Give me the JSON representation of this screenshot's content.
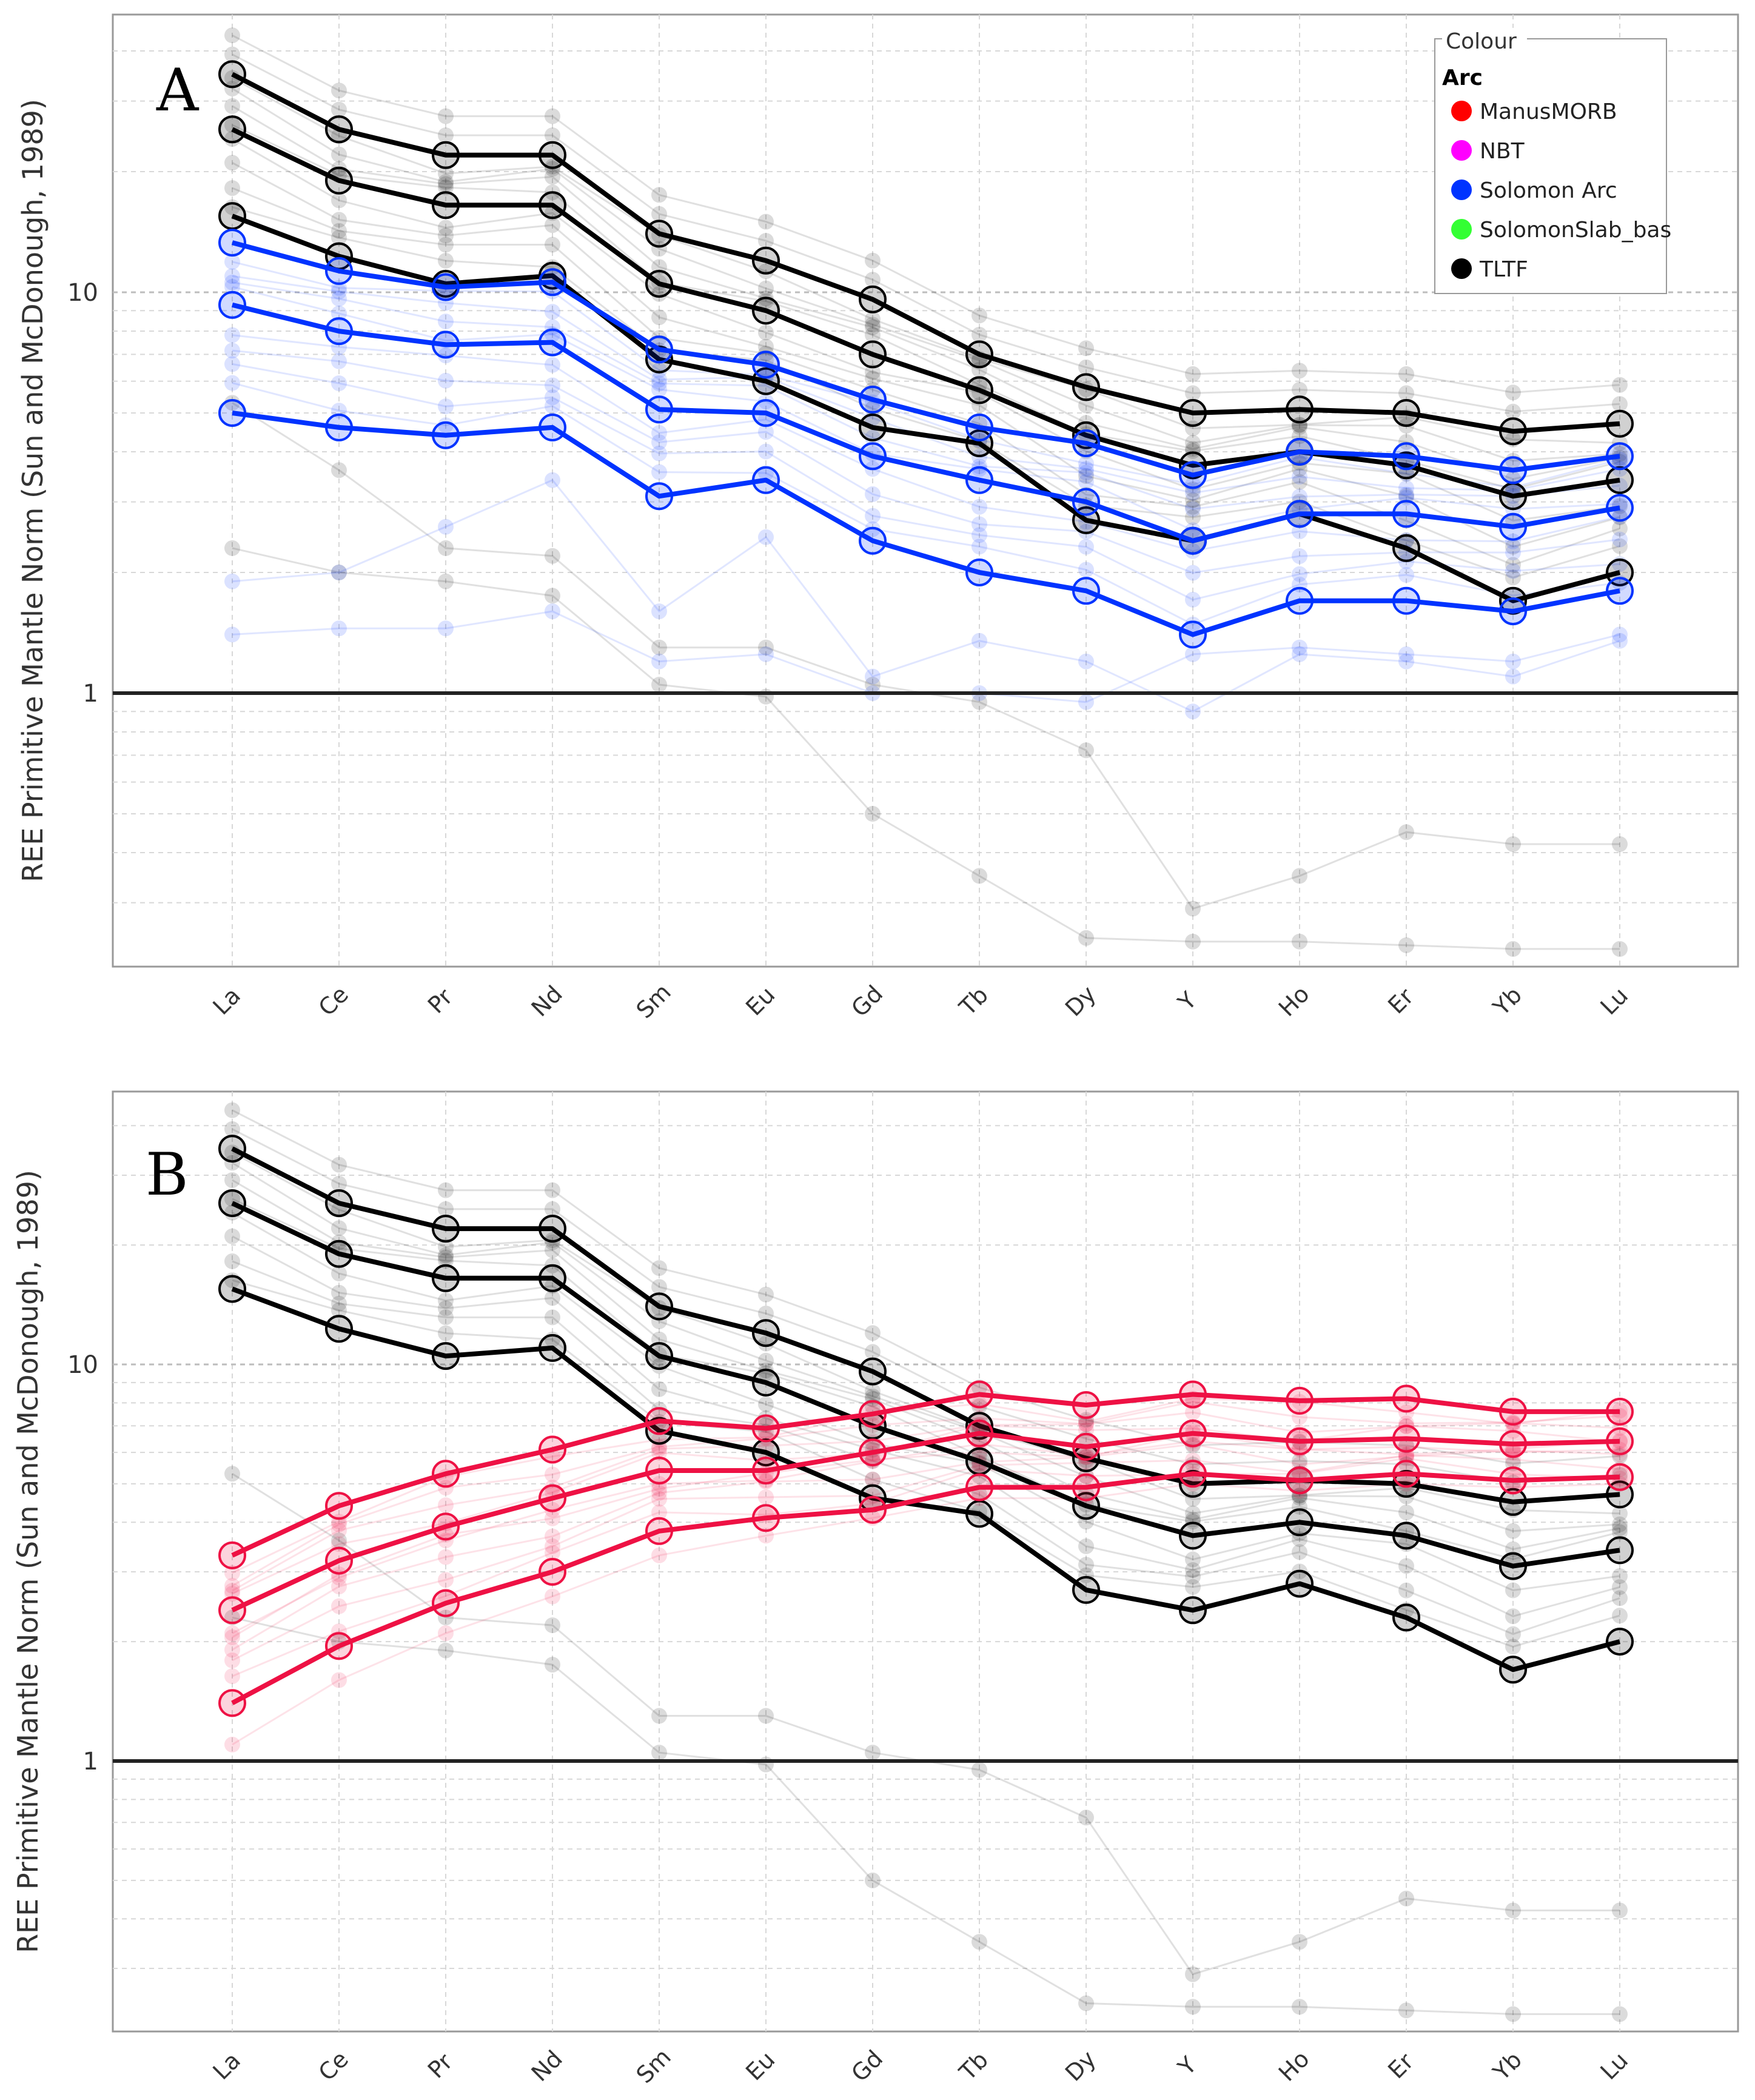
{
  "chart_data": [
    {
      "type": "line",
      "panel_label": "A",
      "ylabel": "REE Primitive Mantle Norm (Sun and McDonough, 1989)",
      "yscale": "log",
      "ylim": [
        0.22,
        45
      ],
      "yticks": [
        {
          "value": 1,
          "label": "1"
        },
        {
          "value": 10,
          "label": "10"
        }
      ],
      "categories": [
        "La",
        "Ce",
        "Pr",
        "Nd",
        "Sm",
        "Eu",
        "Gd",
        "Tb",
        "Dy",
        "Y",
        "Ho",
        "Er",
        "Yb",
        "Lu"
      ],
      "reference_line": 1,
      "grid": true,
      "legend": {
        "title": "Colour",
        "group": "Arc",
        "position": "top-right",
        "entries": [
          {
            "name": "ManusMORB",
            "color": "#ff0000"
          },
          {
            "name": "NBT",
            "color": "#ff00ff"
          },
          {
            "name": "Solomon Arc",
            "color": "#0033ff"
          },
          {
            "name": "SolomonSlab_bas",
            "color": "#33ff33"
          },
          {
            "name": "TLTF",
            "color": "#000000"
          }
        ]
      },
      "series": [
        {
          "name": "TLTF",
          "color": "#000000",
          "values": [
            35,
            25.5,
            22,
            22,
            14,
            12,
            9.6,
            7,
            5.8,
            5,
            5.1,
            5,
            4.5,
            4.7
          ]
        },
        {
          "name": "TLTF",
          "color": "#000000",
          "values": [
            25.5,
            19,
            16.5,
            16.5,
            10.5,
            9,
            7,
            5.7,
            4.4,
            3.7,
            4,
            3.7,
            3.1,
            3.4
          ]
        },
        {
          "name": "TLTF",
          "color": "#000000",
          "values": [
            15.5,
            12.3,
            10.5,
            11,
            6.8,
            6,
            4.6,
            4.2,
            2.7,
            2.4,
            2.8,
            2.3,
            1.7,
            2
          ]
        },
        {
          "name": "Solomon Arc",
          "color": "#0033ff",
          "values": [
            13.3,
            11.3,
            10.3,
            10.6,
            7.2,
            6.6,
            5.4,
            4.6,
            4.2,
            3.5,
            4,
            3.9,
            3.6,
            3.9
          ]
        },
        {
          "name": "Solomon Arc",
          "color": "#0033ff",
          "values": [
            9.3,
            8,
            7.4,
            7.5,
            5.1,
            5,
            3.9,
            3.4,
            3,
            2.4,
            2.8,
            2.8,
            2.6,
            2.9
          ]
        },
        {
          "name": "Solomon Arc",
          "color": "#0033ff",
          "values": [
            5,
            4.6,
            4.4,
            4.6,
            3.1,
            3.4,
            2.4,
            2,
            1.8,
            1.4,
            1.7,
            1.7,
            1.6,
            1.8
          ]
        }
      ]
    },
    {
      "type": "line",
      "panel_label": "B",
      "ylabel": "REE Primitive Mantle Norm (Sun and McDonough, 1989)",
      "yscale": "log",
      "ylim": [
        0.22,
        45
      ],
      "yticks": [
        {
          "value": 1,
          "label": "1"
        },
        {
          "value": 10,
          "label": "10"
        }
      ],
      "categories": [
        "La",
        "Ce",
        "Pr",
        "Nd",
        "Sm",
        "Eu",
        "Gd",
        "Tb",
        "Dy",
        "Y",
        "Ho",
        "Er",
        "Yb",
        "Lu"
      ],
      "reference_line": 1,
      "grid": true,
      "series": [
        {
          "name": "TLTF",
          "color": "#000000",
          "values": [
            35,
            25.5,
            22,
            22,
            14,
            12,
            9.6,
            7,
            5.8,
            5,
            5.1,
            5,
            4.5,
            4.7
          ]
        },
        {
          "name": "TLTF",
          "color": "#000000",
          "values": [
            25.5,
            19,
            16.5,
            16.5,
            10.5,
            9,
            7,
            5.7,
            4.4,
            3.7,
            4,
            3.7,
            3.1,
            3.4
          ]
        },
        {
          "name": "TLTF",
          "color": "#000000",
          "values": [
            15.5,
            12.3,
            10.5,
            11,
            6.8,
            6,
            4.6,
            4.2,
            2.7,
            2.4,
            2.8,
            2.3,
            1.7,
            2
          ]
        },
        {
          "name": "ManusMORB",
          "color": "#ee1144",
          "values": [
            3.3,
            4.4,
            5.3,
            6.1,
            7.2,
            6.9,
            7.5,
            8.4,
            7.9,
            8.4,
            8.1,
            8.2,
            7.6,
            7.6
          ]
        },
        {
          "name": "ManusMORB",
          "color": "#ee1144",
          "values": [
            2.4,
            3.2,
            3.9,
            4.6,
            5.4,
            5.4,
            6,
            6.7,
            6.2,
            6.7,
            6.4,
            6.5,
            6.3,
            6.4
          ]
        },
        {
          "name": "ManusMORB",
          "color": "#ee1144",
          "values": [
            1.4,
            1.95,
            2.5,
            3,
            3.8,
            4.1,
            4.3,
            4.9,
            4.9,
            5.3,
            5.1,
            5.3,
            5.1,
            5.2
          ]
        }
      ]
    }
  ]
}
